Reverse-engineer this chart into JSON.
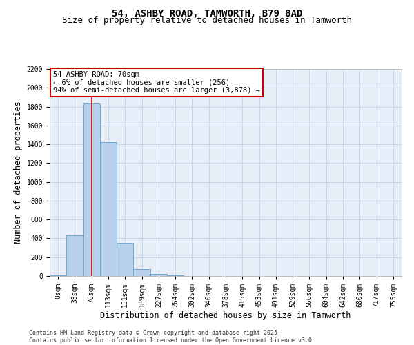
{
  "title": "54, ASHBY ROAD, TAMWORTH, B79 8AD",
  "subtitle": "Size of property relative to detached houses in Tamworth",
  "xlabel": "Distribution of detached houses by size in Tamworth",
  "ylabel": "Number of detached properties",
  "categories": [
    "0sqm",
    "38sqm",
    "76sqm",
    "113sqm",
    "151sqm",
    "189sqm",
    "227sqm",
    "264sqm",
    "302sqm",
    "340sqm",
    "378sqm",
    "415sqm",
    "453sqm",
    "491sqm",
    "529sqm",
    "566sqm",
    "604sqm",
    "642sqm",
    "680sqm",
    "717sqm",
    "755sqm"
  ],
  "bar_values": [
    5,
    430,
    1830,
    1420,
    355,
    75,
    25,
    5,
    0,
    0,
    0,
    0,
    0,
    0,
    0,
    0,
    0,
    0,
    0,
    0,
    0
  ],
  "bar_color": "#b8d0ea",
  "bar_edge_color": "#6aaad4",
  "grid_color": "#c8d4e8",
  "background_color": "#e8eef8",
  "property_line_x": 2.0,
  "property_line_color": "#cc0000",
  "annotation_text": "54 ASHBY ROAD: 70sqm\n← 6% of detached houses are smaller (256)\n94% of semi-detached houses are larger (3,878) →",
  "annotation_box_color": "#cc0000",
  "ylim": [
    0,
    2200
  ],
  "yticks": [
    0,
    200,
    400,
    600,
    800,
    1000,
    1200,
    1400,
    1600,
    1800,
    2000,
    2200
  ],
  "footer_text": "Contains HM Land Registry data © Crown copyright and database right 2025.\nContains public sector information licensed under the Open Government Licence v3.0.",
  "title_fontsize": 10,
  "subtitle_fontsize": 9,
  "axis_label_fontsize": 8.5,
  "tick_fontsize": 7,
  "annotation_fontsize": 7.5,
  "footer_fontsize": 6
}
